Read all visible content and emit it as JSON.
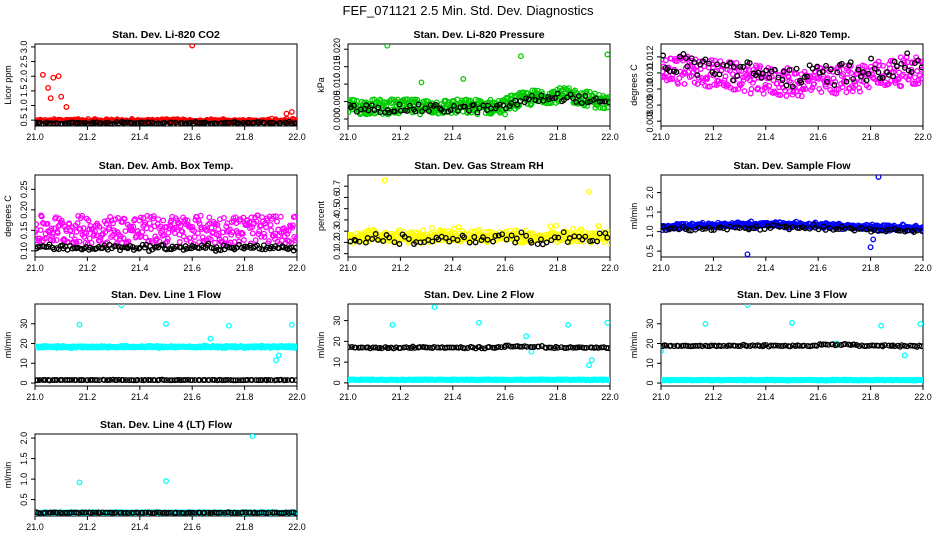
{
  "figure": {
    "title": "FEF_071121  2.5 Min. Std. Dev. Diagnostics"
  },
  "colors": {
    "black": "#000000",
    "red": "#ff0000",
    "green": "#00cc00",
    "magenta": "#ff00ff",
    "yellow": "#ffff00",
    "blue": "#0000ff",
    "cyan": "#00ffff"
  },
  "chart_data": [
    {
      "id": "co2",
      "type": "scatter",
      "title": "Stan. Dev. Li-820 CO2",
      "ylabel": "Licor ppm",
      "xlim": [
        21.0,
        22.0
      ],
      "ylim": [
        0.3,
        3.1
      ],
      "xticks": [
        21.0,
        21.2,
        21.4,
        21.6,
        21.8,
        22.0
      ],
      "xtick_labels": [
        "21.0",
        "21.2",
        "21.4",
        "21.6",
        "21.8",
        "22.0"
      ],
      "yticks": [
        0.5,
        1.0,
        1.5,
        2.0,
        2.5,
        3.0
      ],
      "ytick_labels": [
        "0.5",
        "1.0",
        "1.5",
        "2.0",
        "2.5",
        "3.0"
      ],
      "series": [
        {
          "name": "primary",
          "color": "red",
          "count": 320,
          "base": 0.45,
          "noise": 0.05,
          "shape": "co2",
          "outliers": [
            [
              21.03,
              2.05
            ],
            [
              21.05,
              1.6
            ],
            [
              21.07,
              1.95
            ],
            [
              21.09,
              2.0
            ],
            [
              21.06,
              1.25
            ],
            [
              21.1,
              1.3
            ],
            [
              21.12,
              0.95
            ],
            [
              21.6,
              3.05
            ],
            [
              21.98,
              0.78
            ],
            [
              21.96,
              0.72
            ]
          ]
        },
        {
          "name": "secondary",
          "color": "black",
          "count": 120,
          "base": 0.4,
          "noise": 0.04,
          "shape": "flat"
        }
      ]
    },
    {
      "id": "pressure",
      "type": "scatter",
      "title": "Stan. Dev. Li-820 Pressure",
      "ylabel": "kPa",
      "xlim": [
        21.0,
        22.0
      ],
      "ylim": [
        -0.002,
        0.0215
      ],
      "xticks": [
        21.0,
        21.2,
        21.4,
        21.6,
        21.8,
        22.0
      ],
      "xtick_labels": [
        "21.0",
        "21.2",
        "21.4",
        "21.6",
        "21.8",
        "22.0"
      ],
      "yticks": [
        0.0,
        0.005,
        0.01,
        0.015,
        0.02
      ],
      "ytick_labels": [
        "0.000",
        "0.005",
        "0.010",
        "0.015",
        "0.020"
      ],
      "series": [
        {
          "name": "primary",
          "color": "green",
          "count": 420,
          "base": 0.0035,
          "noise": 0.0022,
          "shape": "pressure",
          "outliers": [
            [
              21.15,
              0.021
            ],
            [
              21.66,
              0.018
            ],
            [
              21.99,
              0.0185
            ],
            [
              21.44,
              0.0115
            ],
            [
              21.28,
              0.0105
            ]
          ]
        },
        {
          "name": "secondary",
          "color": "black",
          "count": 90,
          "base": 0.003,
          "noise": 0.0012,
          "shape": "pressure"
        }
      ]
    },
    {
      "id": "licor_temp",
      "type": "scatter",
      "title": "Stan. Dev. Li-820 Temp.",
      "ylabel": "degrees C",
      "xlim": [
        21.0,
        22.0
      ],
      "ylim": [
        0.0077,
        0.0128
      ],
      "xticks": [
        21.0,
        21.2,
        21.4,
        21.6,
        21.8,
        22.0
      ],
      "xtick_labels": [
        "21.0",
        "21.2",
        "21.4",
        "21.6",
        "21.8",
        "22.0"
      ],
      "yticks": [
        0.008,
        0.009,
        0.01,
        0.011,
        0.012
      ],
      "ytick_labels": [
        "0.008",
        "0.009",
        "0.010",
        "0.011",
        "0.012"
      ],
      "series": [
        {
          "name": "primary",
          "color": "magenta",
          "count": 360,
          "base": 0.0108,
          "noise": 0.0009,
          "shape": "temp"
        },
        {
          "name": "secondary",
          "color": "black",
          "count": 90,
          "base": 0.0112,
          "noise": 0.0007,
          "shape": "temp"
        }
      ]
    },
    {
      "id": "box_temp",
      "type": "scatter",
      "title": "Stan. Dev. Amb. Box Temp.",
      "ylabel": "degrees C",
      "xlim": [
        21.0,
        22.0
      ],
      "ylim": [
        0.085,
        0.285
      ],
      "xticks": [
        21.0,
        21.2,
        21.4,
        21.6,
        21.8,
        22.0
      ],
      "xtick_labels": [
        "21.0",
        "21.2",
        "21.4",
        "21.6",
        "21.8",
        "22.0"
      ],
      "yticks": [
        0.1,
        0.15,
        0.2,
        0.25
      ],
      "ytick_labels": [
        "0.10",
        "0.15",
        "0.20",
        "0.25"
      ],
      "series": [
        {
          "name": "primary",
          "color": "magenta",
          "count": 360,
          "base": 0.155,
          "noise": 0.035,
          "shape": "box"
        },
        {
          "name": "secondary",
          "color": "black",
          "count": 130,
          "base": 0.108,
          "noise": 0.008,
          "shape": "flat"
        }
      ]
    },
    {
      "id": "rh",
      "type": "scatter",
      "title": "Stan. Dev. Gas Stream RH",
      "ylabel": "percent",
      "xlim": [
        21.0,
        22.0
      ],
      "ylim": [
        0.07,
        0.8
      ],
      "xticks": [
        21.0,
        21.2,
        21.4,
        21.6,
        21.8,
        22.0
      ],
      "xtick_labels": [
        "21.0",
        "21.2",
        "21.4",
        "21.6",
        "21.8",
        "22.0"
      ],
      "yticks": [
        0.1,
        0.2,
        0.3,
        0.4,
        0.5,
        0.6,
        0.7
      ],
      "ytick_labels": [
        "0.1",
        "0.2",
        "0.3",
        "0.4",
        "0.5",
        "0.6",
        "0.7"
      ],
      "series": [
        {
          "name": "primary",
          "color": "yellow",
          "count": 420,
          "base": 0.22,
          "noise": 0.1,
          "shape": "rh",
          "outliers": [
            [
              21.14,
              0.75
            ],
            [
              21.92,
              0.65
            ]
          ]
        },
        {
          "name": "secondary",
          "color": "black",
          "count": 70,
          "base": 0.2,
          "noise": 0.08,
          "shape": "rh"
        }
      ]
    },
    {
      "id": "sample_flow",
      "type": "scatter",
      "title": "Stan. Dev. Sample Flow",
      "ylabel": "ml/min",
      "xlim": [
        21.0,
        22.0
      ],
      "ylim": [
        0.35,
        2.45
      ],
      "xticks": [
        21.0,
        21.2,
        21.4,
        21.6,
        21.8,
        22.0
      ],
      "xtick_labels": [
        "21.0",
        "21.2",
        "21.4",
        "21.6",
        "21.8",
        "22.0"
      ],
      "yticks": [
        0.5,
        1.0,
        1.5,
        2.0
      ],
      "ytick_labels": [
        "0.5",
        "1.0",
        "1.5",
        "2.0"
      ],
      "series": [
        {
          "name": "primary",
          "color": "blue",
          "count": 420,
          "base": 1.12,
          "noise": 0.07,
          "shape": "sflow",
          "outliers": [
            [
              21.83,
              2.4
            ],
            [
              21.33,
              0.42
            ],
            [
              21.8,
              0.6
            ],
            [
              21.81,
              0.8
            ]
          ]
        },
        {
          "name": "secondary",
          "color": "black",
          "count": 80,
          "base": 1.05,
          "noise": 0.06,
          "shape": "sflow"
        }
      ]
    },
    {
      "id": "line1",
      "type": "scatter",
      "title": "Stan. Dev. Line 1 Flow",
      "ylabel": "ml/min",
      "xlim": [
        21.0,
        22.0
      ],
      "ylim": [
        -1.5,
        40
      ],
      "xticks": [
        21.0,
        21.2,
        21.4,
        21.6,
        21.8,
        22.0
      ],
      "xtick_labels": [
        "21.0",
        "21.2",
        "21.4",
        "21.6",
        "21.8",
        "22.0"
      ],
      "yticks": [
        0,
        10,
        20,
        30
      ],
      "ytick_labels": [
        "0",
        "10",
        "20",
        "30"
      ],
      "series": [
        {
          "name": "primary",
          "color": "cyan",
          "count": 380,
          "base": 18.3,
          "noise": 0.5,
          "shape": "band",
          "outliers": [
            [
              21.17,
              29.5
            ],
            [
              21.33,
              39.5
            ],
            [
              21.5,
              30.0
            ],
            [
              21.74,
              29.0
            ],
            [
              21.98,
              29.5
            ],
            [
              21.67,
              22.5
            ],
            [
              21.93,
              14.0
            ],
            [
              21.92,
              11.5
            ]
          ]
        },
        {
          "name": "secondary",
          "color": "black",
          "count": 110,
          "base": 1.5,
          "noise": 0.15,
          "shape": "flat"
        }
      ]
    },
    {
      "id": "line2",
      "type": "scatter",
      "title": "Stan. Dev. Line 2 Flow",
      "ylabel": "ml/min",
      "xlim": [
        21.0,
        22.0
      ],
      "ylim": [
        -1.5,
        38
      ],
      "xticks": [
        21.0,
        21.2,
        21.4,
        21.6,
        21.8,
        22.0
      ],
      "xtick_labels": [
        "21.0",
        "21.2",
        "21.4",
        "21.6",
        "21.8",
        "22.0"
      ],
      "yticks": [
        0,
        10,
        20,
        30
      ],
      "ytick_labels": [
        "0",
        "10",
        "20",
        "30"
      ],
      "series": [
        {
          "name": "primary",
          "color": "cyan",
          "count": 380,
          "base": 1.5,
          "noise": 0.2,
          "shape": "flat",
          "outliers": [
            [
              21.17,
              28.0
            ],
            [
              21.33,
              36.5
            ],
            [
              21.5,
              29.0
            ],
            [
              21.68,
              22.5
            ],
            [
              21.7,
              15.0
            ],
            [
              21.84,
              28.0
            ],
            [
              21.92,
              8.5
            ],
            [
              21.93,
              11.0
            ],
            [
              21.99,
              29.0
            ]
          ]
        },
        {
          "name": "secondary",
          "color": "black",
          "count": 110,
          "base": 17.0,
          "noise": 0.4,
          "shape": "band2"
        }
      ]
    },
    {
      "id": "line3",
      "type": "scatter",
      "title": "Stan. Dev. Line 3 Flow",
      "ylabel": "ml/min",
      "xlim": [
        21.0,
        22.0
      ],
      "ylim": [
        -1.5,
        40
      ],
      "xticks": [
        21.0,
        21.2,
        21.4,
        21.6,
        21.8,
        22.0
      ],
      "xtick_labels": [
        "21.0",
        "21.2",
        "21.4",
        "21.6",
        "21.8",
        "22.0"
      ],
      "yticks": [
        0,
        10,
        20,
        30
      ],
      "ytick_labels": [
        "0",
        "10",
        "20",
        "30"
      ],
      "series": [
        {
          "name": "primary",
          "color": "cyan",
          "count": 380,
          "base": 1.5,
          "noise": 0.2,
          "shape": "flat",
          "outliers": [
            [
              21.17,
              30.0
            ],
            [
              21.33,
              39.5
            ],
            [
              21.5,
              30.5
            ],
            [
              21.84,
              29.0
            ],
            [
              21.99,
              30.0
            ],
            [
              21.0,
              16.0
            ],
            [
              21.93,
              14.0
            ],
            [
              21.67,
              20.0
            ]
          ]
        },
        {
          "name": "secondary",
          "color": "black",
          "count": 110,
          "base": 18.8,
          "noise": 0.4,
          "shape": "band2"
        }
      ]
    },
    {
      "id": "line4",
      "type": "scatter",
      "title": "Stan. Dev. Line 4 (LT) Flow",
      "ylabel": "ml/min",
      "xlim": [
        21.0,
        22.0
      ],
      "ylim": [
        0.1,
        2.1
      ],
      "xticks": [
        21.0,
        21.2,
        21.4,
        21.6,
        21.8,
        22.0
      ],
      "xtick_labels": [
        "21.0",
        "21.2",
        "21.4",
        "21.6",
        "21.8",
        "22.0"
      ],
      "yticks": [
        0.5,
        1.0,
        1.5,
        2.0
      ],
      "ytick_labels": [
        "0.5",
        "1.0",
        "1.5",
        "2.0"
      ],
      "series": [
        {
          "name": "primary",
          "color": "cyan",
          "count": 380,
          "base": 0.18,
          "noise": 0.015,
          "shape": "flat",
          "outliers": [
            [
              21.17,
              0.92
            ],
            [
              21.5,
              0.95
            ],
            [
              21.83,
              2.05
            ]
          ]
        },
        {
          "name": "secondary",
          "color": "black",
          "count": 110,
          "base": 0.18,
          "noise": 0.012,
          "shape": "flat"
        }
      ]
    }
  ]
}
